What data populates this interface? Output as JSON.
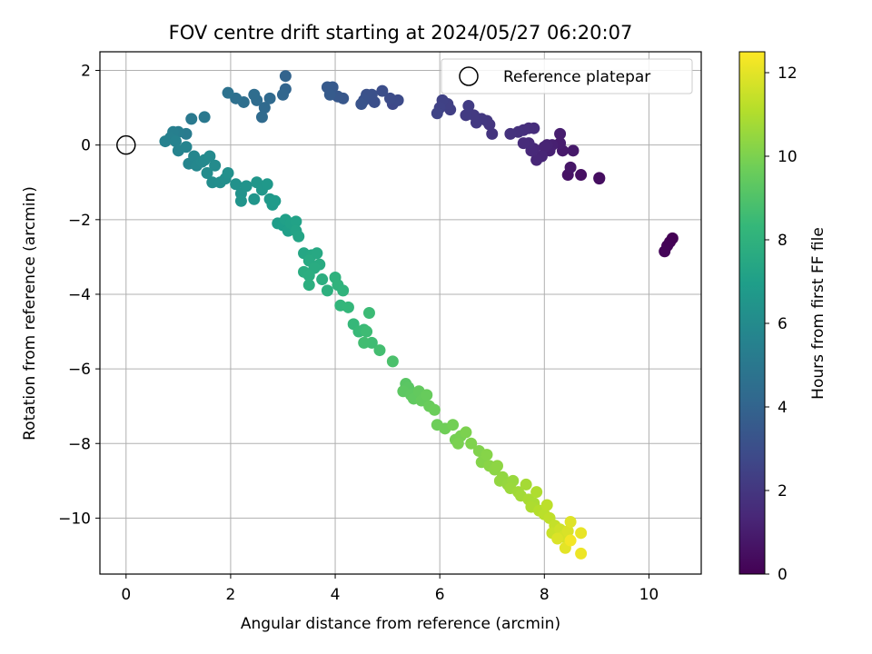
{
  "chart_data": {
    "type": "scatter",
    "title": "FOV centre drift starting at 2024/05/27 06:20:07",
    "xlabel": "Angular distance from reference (arcmin)",
    "ylabel": "Rotation from reference (arcmin)",
    "xlim": [
      -0.5,
      11.0
    ],
    "ylim": [
      -11.5,
      2.5
    ],
    "xticks": [
      0,
      2,
      4,
      6,
      8,
      10
    ],
    "yticks": [
      2,
      0,
      -2,
      -4,
      -6,
      -8,
      -10
    ],
    "xtick_labels": [
      "0",
      "2",
      "4",
      "6",
      "8",
      "10"
    ],
    "ytick_labels": [
      "2",
      "0",
      "−2",
      "−4",
      "−6",
      "−8",
      "−10"
    ],
    "grid": true,
    "legend_position": "top-right",
    "legend": {
      "label": "Reference platepar"
    },
    "reference_point": {
      "x": 0,
      "y": 0
    },
    "colorbar": {
      "label": "Hours from first FF file",
      "colormap": "viridis",
      "range": [
        0,
        12.5
      ],
      "ticks": [
        0,
        2,
        4,
        6,
        8,
        10,
        12
      ],
      "tick_labels": [
        "0",
        "2",
        "4",
        "6",
        "8",
        "10",
        "12"
      ]
    },
    "colormap_stops": [
      "#440154",
      "#482878",
      "#3e4989",
      "#31688e",
      "#26828e",
      "#1f9e89",
      "#35b779",
      "#6ece58",
      "#b5de2b",
      "#fde725"
    ],
    "series": [
      {
        "points": [
          [
            10.45,
            -2.5,
            0.0
          ],
          [
            10.4,
            -2.6,
            0.05
          ],
          [
            10.35,
            -2.7,
            0.1
          ],
          [
            10.3,
            -2.85,
            0.15
          ],
          [
            9.05,
            -0.88,
            0.4
          ],
          [
            9.05,
            -0.9,
            0.45
          ],
          [
            8.7,
            -0.8,
            0.55
          ],
          [
            8.45,
            -0.8,
            0.65
          ],
          [
            8.5,
            -0.6,
            0.75
          ],
          [
            8.55,
            -0.15,
            0.85
          ],
          [
            8.35,
            -0.15,
            0.9
          ],
          [
            8.3,
            0.05,
            1.0
          ],
          [
            8.3,
            0.3,
            1.05
          ],
          [
            8.15,
            0.0,
            1.1
          ],
          [
            8.1,
            -0.15,
            1.15
          ],
          [
            8.05,
            0.0,
            1.2
          ],
          [
            8.0,
            -0.05,
            1.25
          ],
          [
            7.95,
            -0.3,
            1.3
          ],
          [
            7.85,
            -0.4,
            1.35
          ],
          [
            7.8,
            -0.1,
            1.4
          ],
          [
            7.75,
            -0.15,
            1.45
          ],
          [
            7.7,
            0.05,
            1.5
          ],
          [
            7.6,
            0.05,
            1.55
          ],
          [
            7.8,
            0.45,
            1.6
          ],
          [
            7.7,
            0.45,
            1.65
          ],
          [
            7.6,
            0.4,
            1.7
          ],
          [
            7.5,
            0.35,
            1.75
          ],
          [
            7.35,
            0.3,
            1.8
          ],
          [
            7.0,
            0.3,
            1.9
          ],
          [
            6.95,
            0.55,
            1.95
          ],
          [
            6.9,
            0.65,
            2.0
          ],
          [
            6.8,
            0.7,
            2.05
          ],
          [
            6.7,
            0.6,
            2.1
          ],
          [
            6.65,
            0.8,
            2.15
          ],
          [
            6.5,
            0.8,
            2.2
          ],
          [
            6.55,
            1.05,
            2.25
          ],
          [
            6.2,
            0.95,
            2.35
          ],
          [
            6.15,
            1.1,
            2.4
          ],
          [
            6.05,
            1.2,
            2.45
          ],
          [
            6.0,
            1.0,
            2.5
          ],
          [
            5.95,
            0.85,
            2.55
          ],
          [
            5.1,
            1.1,
            2.8
          ],
          [
            5.2,
            1.2,
            2.85
          ],
          [
            5.05,
            1.25,
            2.9
          ],
          [
            4.9,
            1.45,
            3.0
          ],
          [
            4.75,
            1.15,
            3.05
          ],
          [
            4.7,
            1.35,
            3.1
          ],
          [
            4.6,
            1.35,
            3.15
          ],
          [
            4.55,
            1.2,
            3.2
          ],
          [
            4.5,
            1.1,
            3.25
          ],
          [
            4.15,
            1.25,
            3.4
          ],
          [
            4.05,
            1.3,
            3.45
          ],
          [
            3.95,
            1.55,
            3.5
          ],
          [
            3.85,
            1.55,
            3.55
          ],
          [
            3.9,
            1.35,
            3.6
          ],
          [
            3.05,
            1.85,
            4.0
          ],
          [
            3.05,
            1.5,
            4.05
          ],
          [
            3.0,
            1.35,
            4.1
          ],
          [
            2.75,
            1.25,
            4.25
          ],
          [
            2.65,
            1.0,
            4.3
          ],
          [
            2.6,
            0.75,
            4.35
          ],
          [
            2.5,
            1.2,
            4.4
          ],
          [
            2.45,
            1.35,
            4.45
          ],
          [
            2.25,
            1.15,
            4.55
          ],
          [
            2.1,
            1.25,
            4.6
          ],
          [
            1.95,
            1.4,
            4.7
          ],
          [
            1.5,
            0.75,
            5.0
          ],
          [
            1.25,
            0.7,
            5.1
          ],
          [
            1.15,
            0.3,
            5.2
          ],
          [
            1.0,
            0.35,
            5.3
          ],
          [
            0.9,
            0.35,
            5.4
          ],
          [
            0.85,
            0.2,
            5.45
          ],
          [
            0.75,
            0.1,
            5.5
          ],
          [
            0.95,
            0.1,
            5.55
          ],
          [
            1.0,
            -0.15,
            5.6
          ],
          [
            1.15,
            -0.05,
            5.65
          ],
          [
            1.2,
            -0.5,
            5.7
          ],
          [
            1.3,
            -0.3,
            5.75
          ],
          [
            1.35,
            -0.55,
            5.8
          ],
          [
            1.45,
            -0.45,
            5.85
          ],
          [
            1.5,
            -0.4,
            5.9
          ],
          [
            1.6,
            -0.3,
            5.95
          ],
          [
            1.7,
            -0.55,
            6.0
          ],
          [
            1.55,
            -0.75,
            6.05
          ],
          [
            1.65,
            -1.0,
            6.1
          ],
          [
            1.8,
            -1.0,
            6.15
          ],
          [
            1.9,
            -0.9,
            6.2
          ],
          [
            1.95,
            -0.75,
            6.25
          ],
          [
            2.1,
            -1.05,
            6.3
          ],
          [
            2.2,
            -1.3,
            6.35
          ],
          [
            2.3,
            -1.1,
            6.4
          ],
          [
            2.2,
            -1.5,
            6.45
          ],
          [
            2.45,
            -1.45,
            6.5
          ],
          [
            2.5,
            -1.0,
            6.55
          ],
          [
            2.6,
            -1.2,
            6.6
          ],
          [
            2.7,
            -1.05,
            6.65
          ],
          [
            2.75,
            -1.45,
            6.7
          ],
          [
            2.8,
            -1.6,
            6.75
          ],
          [
            2.85,
            -1.5,
            6.8
          ],
          [
            2.9,
            -2.1,
            6.9
          ],
          [
            3.0,
            -2.15,
            6.95
          ],
          [
            3.1,
            -2.3,
            7.0
          ],
          [
            3.05,
            -2.0,
            7.05
          ],
          [
            3.15,
            -2.1,
            7.1
          ],
          [
            3.25,
            -2.05,
            7.15
          ],
          [
            3.25,
            -2.3,
            7.2
          ],
          [
            3.3,
            -2.45,
            7.25
          ],
          [
            3.4,
            -2.9,
            7.4
          ],
          [
            3.55,
            -2.95,
            7.45
          ],
          [
            3.65,
            -2.9,
            7.5
          ],
          [
            3.5,
            -3.1,
            7.55
          ],
          [
            3.7,
            -3.2,
            7.6
          ],
          [
            3.6,
            -3.3,
            7.65
          ],
          [
            3.4,
            -3.4,
            7.7
          ],
          [
            3.5,
            -3.5,
            7.75
          ],
          [
            3.75,
            -3.6,
            7.8
          ],
          [
            3.5,
            -3.75,
            7.85
          ],
          [
            3.85,
            -3.9,
            7.9
          ],
          [
            4.0,
            -3.55,
            8.0
          ],
          [
            4.05,
            -3.75,
            8.05
          ],
          [
            4.15,
            -3.9,
            8.1
          ],
          [
            4.1,
            -4.3,
            8.2
          ],
          [
            4.25,
            -4.35,
            8.25
          ],
          [
            4.35,
            -4.8,
            8.35
          ],
          [
            4.45,
            -5.0,
            8.4
          ],
          [
            4.55,
            -4.95,
            8.45
          ],
          [
            4.65,
            -4.5,
            8.5
          ],
          [
            4.6,
            -5.0,
            8.55
          ],
          [
            4.7,
            -5.3,
            8.6
          ],
          [
            4.55,
            -5.3,
            8.65
          ],
          [
            4.85,
            -5.5,
            8.7
          ],
          [
            5.1,
            -5.8,
            8.9
          ],
          [
            5.35,
            -6.4,
            9.2
          ],
          [
            5.4,
            -6.5,
            9.25
          ],
          [
            5.3,
            -6.6,
            9.3
          ],
          [
            5.45,
            -6.7,
            9.35
          ],
          [
            5.5,
            -6.8,
            9.4
          ],
          [
            5.6,
            -6.6,
            9.45
          ],
          [
            5.65,
            -6.85,
            9.5
          ],
          [
            5.75,
            -6.7,
            9.55
          ],
          [
            5.8,
            -7.0,
            9.6
          ],
          [
            5.9,
            -7.1,
            9.65
          ],
          [
            5.95,
            -7.5,
            9.7
          ],
          [
            6.1,
            -7.6,
            9.75
          ],
          [
            6.25,
            -7.5,
            9.8
          ],
          [
            6.3,
            -7.9,
            9.85
          ],
          [
            6.4,
            -7.8,
            9.9
          ],
          [
            6.35,
            -8.0,
            9.95
          ],
          [
            6.5,
            -7.7,
            10.0
          ],
          [
            6.6,
            -8.0,
            10.05
          ],
          [
            6.75,
            -8.2,
            10.1
          ],
          [
            6.8,
            -8.5,
            10.15
          ],
          [
            6.9,
            -8.3,
            10.2
          ],
          [
            6.95,
            -8.6,
            10.25
          ],
          [
            7.05,
            -8.7,
            10.3
          ],
          [
            7.1,
            -8.6,
            10.35
          ],
          [
            7.2,
            -8.9,
            10.4
          ],
          [
            7.15,
            -9.0,
            10.45
          ],
          [
            7.3,
            -9.1,
            10.5
          ],
          [
            7.4,
            -9.0,
            10.55
          ],
          [
            7.35,
            -9.2,
            10.6
          ],
          [
            7.5,
            -9.3,
            10.7
          ],
          [
            7.55,
            -9.4,
            10.75
          ],
          [
            7.65,
            -9.1,
            10.8
          ],
          [
            7.7,
            -9.5,
            10.85
          ],
          [
            7.8,
            -9.6,
            10.9
          ],
          [
            7.75,
            -9.7,
            10.95
          ],
          [
            7.85,
            -9.3,
            11.0
          ],
          [
            7.9,
            -9.8,
            11.1
          ],
          [
            8.0,
            -9.9,
            11.2
          ],
          [
            8.05,
            -9.65,
            11.25
          ],
          [
            8.1,
            -10.0,
            11.3
          ],
          [
            8.2,
            -10.2,
            11.4
          ],
          [
            8.15,
            -10.4,
            11.5
          ],
          [
            8.3,
            -10.3,
            11.6
          ],
          [
            8.35,
            -10.5,
            11.7
          ],
          [
            8.45,
            -10.35,
            11.8
          ],
          [
            8.25,
            -10.55,
            11.85
          ],
          [
            8.5,
            -10.1,
            11.9
          ],
          [
            8.4,
            -10.8,
            12.0
          ],
          [
            8.7,
            -10.4,
            12.1
          ],
          [
            8.7,
            -10.95,
            12.2
          ],
          [
            8.5,
            -10.6,
            12.3
          ]
        ]
      }
    ]
  }
}
